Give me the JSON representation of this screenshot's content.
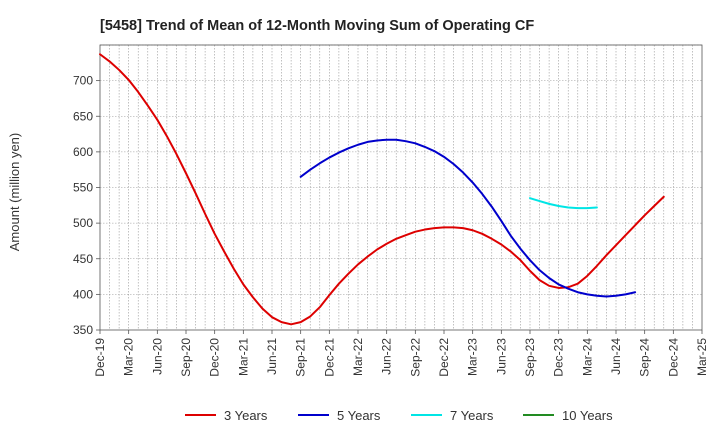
{
  "chart_data": {
    "type": "line",
    "title": "[5458]  Trend of Mean of 12-Month Moving Sum of Operating CF",
    "xlabel": "",
    "ylabel": "Amount (million yen)",
    "ylim": [
      350,
      750
    ],
    "yticks": [
      350,
      400,
      450,
      500,
      550,
      600,
      650,
      700
    ],
    "xticks": [
      "Dec-19",
      "Mar-20",
      "Jun-20",
      "Sep-20",
      "Dec-20",
      "Mar-21",
      "Jun-21",
      "Sep-21",
      "Dec-21",
      "Mar-22",
      "Jun-22",
      "Sep-22",
      "Dec-22",
      "Mar-23",
      "Jun-23",
      "Sep-23",
      "Dec-23",
      "Mar-24",
      "Jun-24",
      "Sep-24",
      "Dec-24",
      "Mar-25"
    ],
    "x_start": "Dec-19",
    "x_end": "Mar-25",
    "grid": true,
    "legend_position": "bottom",
    "series": [
      {
        "name": "3 Years",
        "color": "#dd0000",
        "start_month_index": 0,
        "values": [
          737,
          727,
          715,
          701,
          684,
          665,
          645,
          622,
          597,
          570,
          542,
          513,
          485,
          460,
          436,
          414,
          396,
          380,
          368,
          361,
          358,
          361,
          369,
          382,
          399,
          415,
          429,
          442,
          453,
          463,
          471,
          478,
          483,
          488,
          491,
          493,
          494,
          494,
          493,
          490,
          485,
          478,
          470,
          460,
          448,
          433,
          420,
          412,
          409,
          410,
          415,
          426,
          440,
          455,
          469,
          483,
          497,
          511,
          524,
          537
        ]
      },
      {
        "name": "5 Years",
        "color": "#0000cc",
        "start_month_index": 21,
        "values": [
          565,
          575,
          584,
          592,
          599,
          605,
          610,
          614,
          616,
          617,
          617,
          615,
          612,
          607,
          601,
          593,
          583,
          571,
          557,
          541,
          523,
          503,
          482,
          464,
          448,
          434,
          423,
          414,
          408,
          403,
          400,
          398,
          397,
          398,
          400,
          403
        ]
      },
      {
        "name": "7 Years",
        "color": "#00e5e5",
        "start_month_index": 45,
        "values": [
          535,
          531,
          527,
          524,
          522,
          521,
          521,
          522
        ]
      },
      {
        "name": "10 Years",
        "color": "#228b22",
        "start_month_index": 0,
        "values": []
      }
    ]
  }
}
